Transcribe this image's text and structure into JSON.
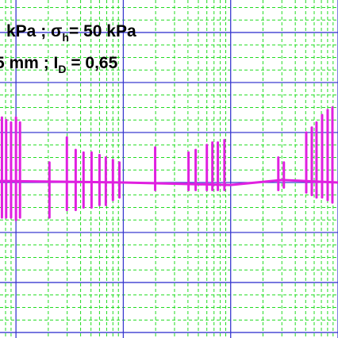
{
  "chart_data": {
    "type": "spike-line",
    "log_x": true,
    "grid": true,
    "color": "#e020e0",
    "xlim": [
      0.71,
      1000
    ],
    "xticks": [
      1,
      10,
      100,
      1000
    ],
    "xticks_minor": [
      0.8,
      0.9,
      2,
      3,
      4,
      5,
      6,
      7,
      8,
      9,
      20,
      30,
      40,
      50,
      60,
      70,
      80,
      90,
      200,
      300,
      400,
      500,
      600,
      700,
      800,
      900
    ],
    "ylim": [
      -3.11,
      3.65
    ],
    "yticks": [
      -3,
      -2,
      -1,
      0,
      1,
      2,
      3
    ],
    "yticks_minor": [
      -2.75,
      -2.5,
      -2.25,
      -1.75,
      -1.5,
      -1.25,
      -0.75,
      -0.5,
      -0.25,
      0.25,
      0.5,
      0.75,
      1.25,
      1.5,
      1.75,
      2.25,
      2.5,
      2.75,
      3.25,
      3.5
    ],
    "annotations": [
      {
        "text": "kPa ; σ",
        "sub": "h",
        "rest": "= 50 kPa"
      },
      {
        "text": "5 mm  ; I",
        "sub": "D",
        "rest": " = 0,65"
      }
    ],
    "baseline": {
      "x": [
        0.71,
        10,
        100,
        300,
        1000
      ],
      "values": [
        0.03,
        0,
        -0.05,
        0.05,
        0
      ]
    },
    "spikes": {
      "x": [
        0.74,
        0.81,
        0.9,
        1.0,
        1.09,
        2.05,
        2.98,
        3.6,
        4.26,
        5.06,
        6.0,
        6.87,
        8.0,
        9.2,
        19.8,
        40.5,
        47.2,
        60,
        67.6,
        76,
        87.5,
        278,
        313,
        506,
        570,
        631,
        711,
        801,
        887
      ],
      "max": [
        1.3,
        1.25,
        1.2,
        1.3,
        1.2,
        0.4,
        0.9,
        0.65,
        0.6,
        0.6,
        0.55,
        0.5,
        0.45,
        0.4,
        0.7,
        0.6,
        0.65,
        0.75,
        0.8,
        0.8,
        0.85,
        0.5,
        0.4,
        1.0,
        1.1,
        1.2,
        1.35,
        1.45,
        1.5
      ],
      "min": [
        -0.7,
        -0.7,
        -0.7,
        -0.75,
        -0.7,
        -0.7,
        -0.55,
        -0.55,
        -0.5,
        -0.5,
        -0.45,
        -0.45,
        -0.35,
        -0.3,
        -0.15,
        -0.15,
        -0.15,
        -0.15,
        -0.15,
        -0.15,
        -0.15,
        -0.15,
        -0.1,
        -0.2,
        -0.25,
        -0.3,
        -0.3,
        -0.35,
        -0.4
      ]
    }
  }
}
